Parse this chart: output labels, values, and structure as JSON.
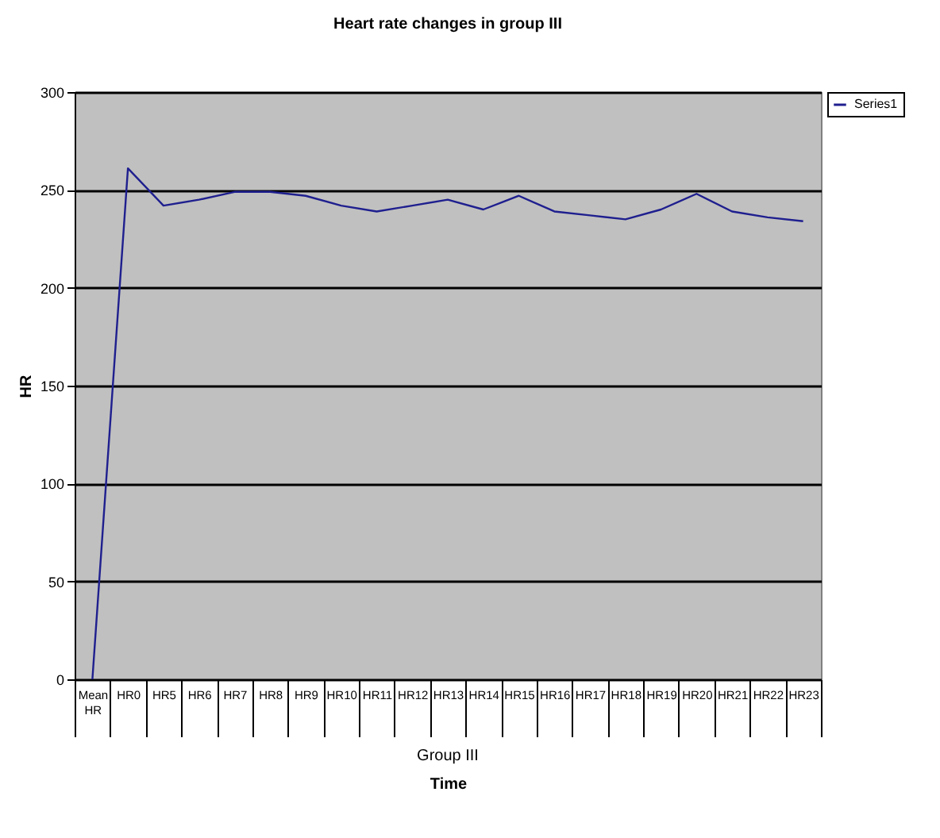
{
  "chart_data": {
    "type": "line",
    "title": "Heart rate changes in group III",
    "xlabel": "Time",
    "ylabel": "HR",
    "annotations": [
      "Group III"
    ],
    "categories": [
      "Mean HR",
      "HR0",
      "HR5",
      "HR6",
      "HR7",
      "HR8",
      "HR9",
      "HR10",
      "HR11",
      "HR12",
      "HR13",
      "HR14",
      "HR15",
      "HR16",
      "HR17",
      "HR18",
      "HR19",
      "HR20",
      "HR21",
      "HR22",
      "HR23"
    ],
    "series": [
      {
        "name": "Series1",
        "color": "#1f1f8f",
        "values": [
          0,
          261,
          242,
          245,
          249,
          249,
          247,
          242,
          239,
          242,
          245,
          240,
          247,
          239,
          237,
          235,
          240,
          248,
          239,
          236,
          234
        ]
      }
    ],
    "ylim": [
      0,
      300
    ],
    "yticks": [
      0,
      50,
      100,
      150,
      200,
      250,
      300
    ],
    "grid": "y",
    "legend": "right",
    "marker": "none",
    "line_style": "solid"
  }
}
